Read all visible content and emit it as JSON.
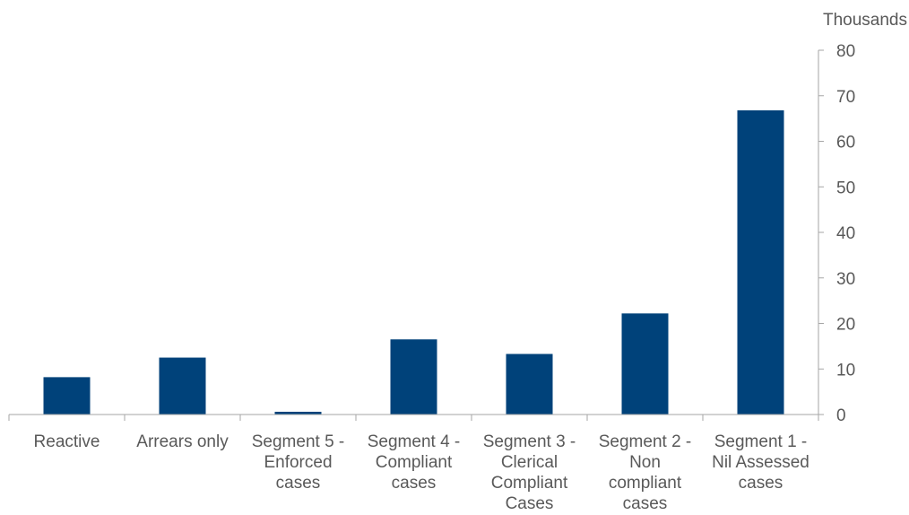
{
  "chart_data": {
    "type": "bar",
    "categories": [
      "Reactive",
      "Arrears only",
      "Segment 5 - Enforced cases",
      "Segment 4 - Compliant cases",
      "Segment 3 - Clerical Compliant Cases",
      "Segment 2 - Non compliant cases",
      "Segment 1 - Nil Assessed cases"
    ],
    "category_lines": [
      [
        "Reactive"
      ],
      [
        "Arrears only"
      ],
      [
        "Segment 5 -",
        "Enforced",
        "cases"
      ],
      [
        "Segment 4 -",
        "Compliant",
        "cases"
      ],
      [
        "Segment 3 -",
        "Clerical",
        "Compliant",
        "Cases"
      ],
      [
        "Segment 2 -",
        "Non",
        "compliant",
        "cases"
      ],
      [
        "Segment 1 -",
        "Nil Assessed",
        "cases"
      ]
    ],
    "values": [
      8.2,
      12.5,
      0.6,
      16.5,
      13.3,
      22.2,
      66.8
    ],
    "units_label": "Thousands",
    "ylim": [
      0,
      80
    ],
    "yticks": [
      "0",
      "10",
      "20",
      "30",
      "40",
      "50",
      "60",
      "70",
      "80"
    ],
    "ytick_values": [
      0,
      10,
      20,
      30,
      40,
      50,
      60,
      70,
      80
    ],
    "y_axis_side": "right",
    "grid": false,
    "legend": "none",
    "bar_color": "#00427a"
  }
}
